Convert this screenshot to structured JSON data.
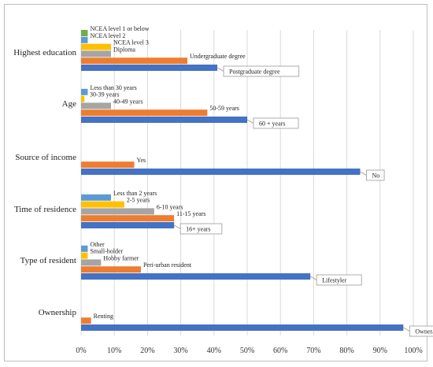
{
  "chart_data": {
    "type": "bar",
    "orientation": "horizontal",
    "title": "",
    "xlabel": "",
    "ylabel": "",
    "xlim": [
      0,
      100
    ],
    "x_ticks": [
      "0%",
      "10%",
      "20%",
      "30%",
      "40%",
      "50%",
      "60%",
      "70%",
      "80%",
      "90%",
      "100%"
    ],
    "grid": true,
    "legend": "none",
    "colors": {
      "green": "#70ad47",
      "lightblue": "#5b9bd5",
      "yellow": "#ffc000",
      "gray": "#a5a5a5",
      "orange": "#ed7d31",
      "blue": "#4472c4"
    },
    "groups": [
      {
        "name": "Highest education",
        "bars": [
          {
            "label": "NCEA level 1 or below",
            "value": 2,
            "color": "green",
            "callout": false
          },
          {
            "label": "NCEA level 2",
            "value": 2,
            "color": "lightblue",
            "callout": false
          },
          {
            "label": "NCEA level 3",
            "value": 9,
            "color": "yellow",
            "callout": false
          },
          {
            "label": "Diploma",
            "value": 9,
            "color": "gray",
            "callout": false
          },
          {
            "label": "Undergraduate degree",
            "value": 32,
            "color": "orange",
            "callout": false
          },
          {
            "label": "Postgraduate degree",
            "value": 41,
            "color": "blue",
            "callout": true
          }
        ]
      },
      {
        "name": "Age",
        "bars": [
          {
            "label": "Less than 30 years",
            "value": 2,
            "color": "lightblue",
            "callout": false
          },
          {
            "label": "30-39 years",
            "value": 1,
            "color": "yellow",
            "callout": false
          },
          {
            "label": "40-49 years",
            "value": 9,
            "color": "gray",
            "callout": false
          },
          {
            "label": "50-59 years",
            "value": 38,
            "color": "orange",
            "callout": false
          },
          {
            "label": "60 + years",
            "value": 50,
            "color": "blue",
            "callout": true
          }
        ]
      },
      {
        "name": "Source of income",
        "bars": [
          {
            "label": "Yes",
            "value": 16,
            "color": "orange",
            "callout": false
          },
          {
            "label": "No",
            "value": 84,
            "color": "blue",
            "callout": true
          }
        ]
      },
      {
        "name": "Time of residence",
        "bars": [
          {
            "label": "Less than 2 years",
            "value": 9,
            "color": "lightblue",
            "callout": false
          },
          {
            "label": "2-5 years",
            "value": 13,
            "color": "yellow",
            "callout": false
          },
          {
            "label": "6-10 years",
            "value": 22,
            "color": "gray",
            "callout": false
          },
          {
            "label": "11-15 years",
            "value": 28,
            "color": "orange",
            "callout": false
          },
          {
            "label": "16+ years",
            "value": 28,
            "color": "blue",
            "callout": true
          }
        ]
      },
      {
        "name": "Type of resident",
        "bars": [
          {
            "label": "Other",
            "value": 2,
            "color": "lightblue",
            "callout": false
          },
          {
            "label": "Small-holder",
            "value": 2,
            "color": "yellow",
            "callout": false
          },
          {
            "label": "Hobby farmer",
            "value": 6,
            "color": "gray",
            "callout": false
          },
          {
            "label": "Peri-urban resident",
            "value": 18,
            "color": "orange",
            "callout": false
          },
          {
            "label": "Lifestyler",
            "value": 69,
            "color": "blue",
            "callout": true
          }
        ]
      },
      {
        "name": "Ownership",
        "bars": [
          {
            "label": "Renting",
            "value": 3,
            "color": "orange",
            "callout": false
          },
          {
            "label": "Owner/buyer",
            "value": 97,
            "color": "blue",
            "callout": true
          }
        ]
      }
    ]
  }
}
